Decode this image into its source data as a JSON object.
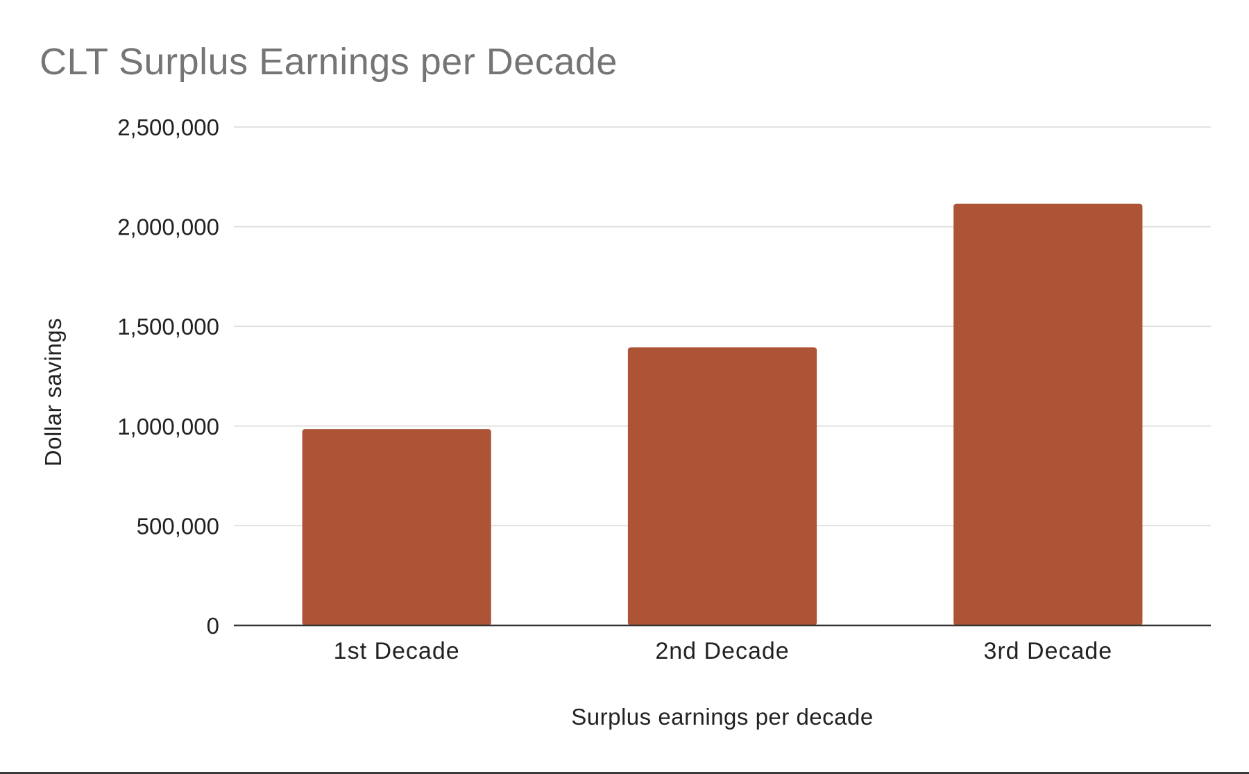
{
  "chart_data": {
    "type": "bar",
    "title": "CLT Surplus Earnings per Decade",
    "xlabel": "Surplus earnings per decade",
    "ylabel": "Dollar savings",
    "categories": [
      "1st Decade",
      "2nd Decade",
      "3rd Decade"
    ],
    "series": [
      {
        "values": [
          985000,
          1395000,
          2115000
        ]
      }
    ],
    "ylim": [
      0,
      2500000
    ],
    "yticks": [
      0,
      500000,
      1000000,
      1500000,
      2000000,
      2500000
    ],
    "ytick_labels": [
      "0",
      "500,000",
      "1,000,000",
      "1,500,000",
      "2,000,000",
      "2,500,000"
    ],
    "grid": true,
    "legend": "none",
    "bar_color": "#ad5436",
    "gridline_color": "#d9d9d9",
    "axis_color": "#333333"
  }
}
